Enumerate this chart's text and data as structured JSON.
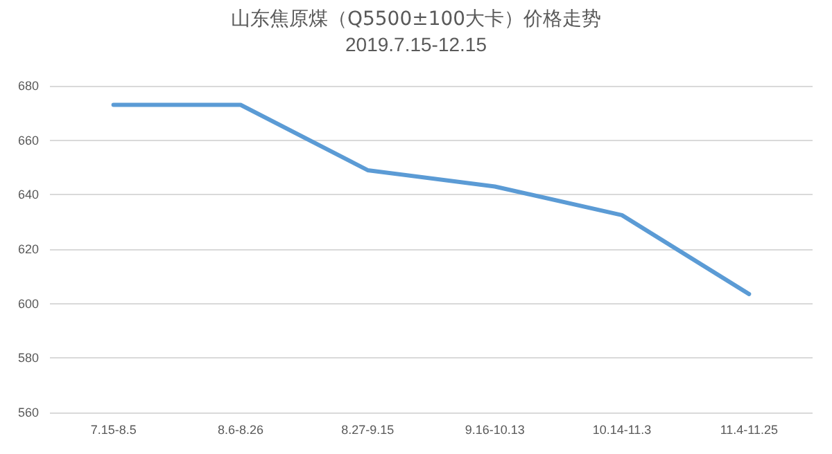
{
  "chart_data": {
    "type": "line",
    "title": "山东焦原煤（Q5500±100大卡）价格走势",
    "subtitle": "2019.7.15-12.15",
    "categories": [
      "7.15-8.5",
      "8.6-8.26",
      "8.27-9.15",
      "9.16-10.13",
      "10.14-11.3",
      "11.4-11.25"
    ],
    "series": [
      {
        "color": "#5b9bd5",
        "values": [
          673,
          673,
          649,
          643,
          632.5,
          603.5
        ]
      }
    ],
    "ylim": [
      560,
      680
    ],
    "yticks": [
      560,
      580,
      600,
      620,
      640,
      660,
      680
    ],
    "grid": "y",
    "marker": "none",
    "line_style": "solid"
  }
}
